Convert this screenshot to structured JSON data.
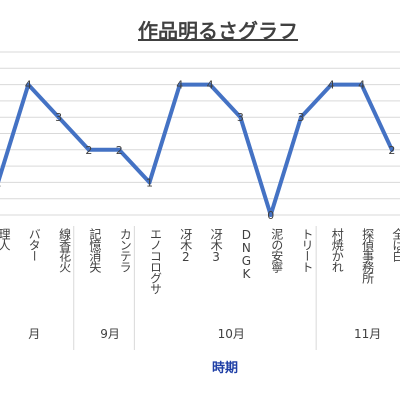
{
  "chart_data": {
    "type": "line",
    "title": "作品明るさグラフ",
    "xlabel": "時期",
    "ylabel": "",
    "ylim": [
      0,
      5
    ],
    "grid": true,
    "legend": "none",
    "line_color": "#4472c4",
    "categories": [
      "理人",
      "バター",
      "線香花火",
      "記憶消失",
      "カンテラ",
      "エノコログサ",
      "冴木2",
      "冴木3",
      "DNGK",
      "泥の安寧",
      "トリート",
      "村焼かれ",
      "探偵事務所",
      "全は白"
    ],
    "values": [
      1,
      4,
      3,
      2,
      2,
      1,
      4,
      4,
      3,
      0,
      3,
      4,
      4,
      2
    ],
    "groups": [
      {
        "label": "月",
        "count": 3
      },
      {
        "label": "9月",
        "count": 2
      },
      {
        "label": "10月",
        "count": 6
      },
      {
        "label": "11月",
        "count": 3
      }
    ]
  }
}
